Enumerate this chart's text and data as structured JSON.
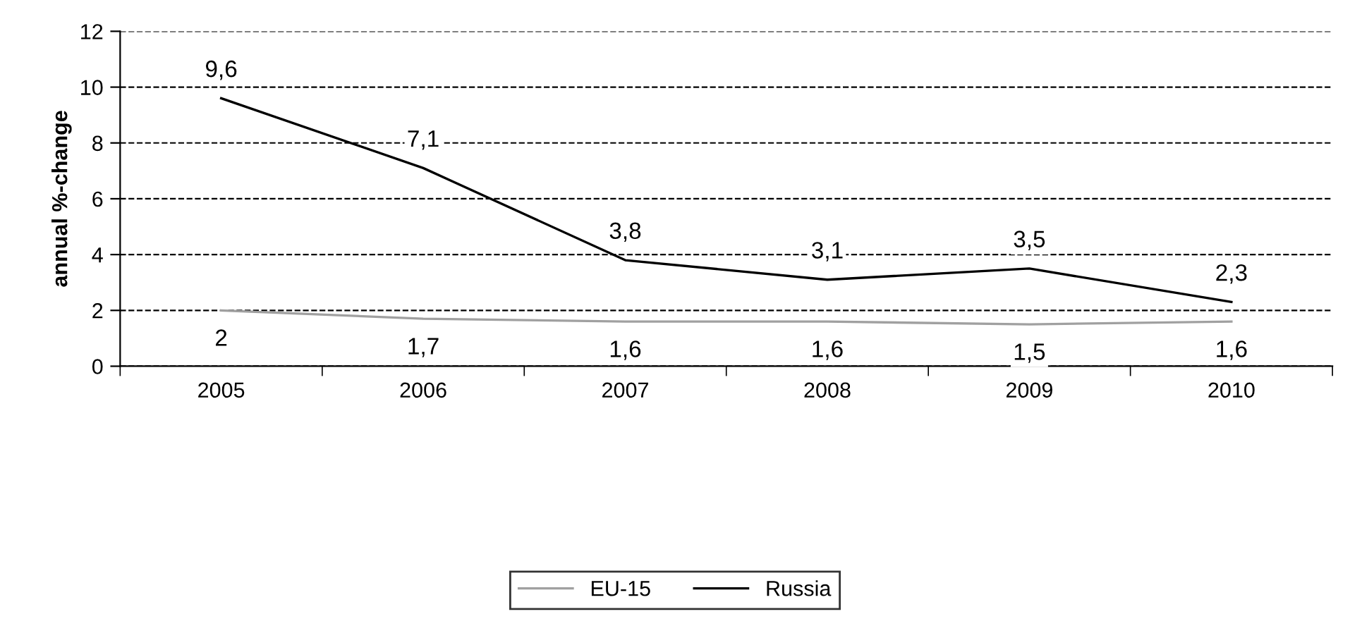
{
  "chart_data": {
    "type": "line",
    "ylabel": "annual %-change",
    "categories": [
      "2005",
      "2006",
      "2007",
      "2008",
      "2009",
      "2010"
    ],
    "series": [
      {
        "name": "EU-15",
        "color": "#a0a0a0",
        "values": [
          2,
          1.7,
          1.6,
          1.6,
          1.5,
          1.6
        ],
        "value_labels": [
          "2",
          "1,7",
          "1,6",
          "1,6",
          "1,5",
          "1,6"
        ]
      },
      {
        "name": "Russia",
        "color": "#000000",
        "values": [
          9.6,
          7.1,
          3.8,
          3.1,
          3.5,
          2.3
        ],
        "value_labels": [
          "9,6",
          "7,1",
          "3,8",
          "3,1",
          "3,5",
          "2,3"
        ]
      }
    ],
    "ylim": [
      0,
      12
    ],
    "yticks": [
      0,
      2,
      4,
      6,
      8,
      10,
      12
    ],
    "grid": "y",
    "legend": "bottom",
    "marker": "none",
    "line_style": "solid"
  }
}
